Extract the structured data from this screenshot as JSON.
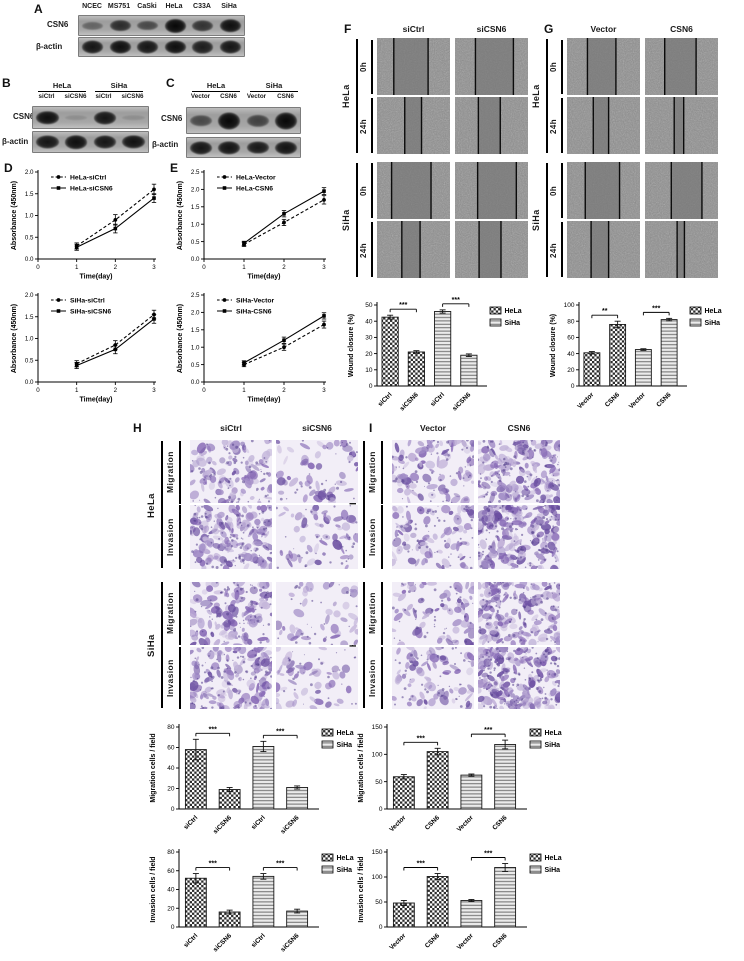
{
  "figure_title": "CSN6 cervical cancer figure",
  "colors": {
    "band": "#141414",
    "blot_bg": "#a3a3a3",
    "wound_bg": "#8d8d8d",
    "wound_gap": "#7c7c7c",
    "wound_line": "#0b0b0b",
    "stain_bg": "#f2eef7",
    "stain_palette": [
      "#6b4fa1",
      "#8668b5",
      "#a18cc6",
      "#c4b6da",
      "#54408c"
    ],
    "axis": "#000000",
    "siha_fill": "#ebebeb"
  },
  "panels": {
    "A": {
      "label": "A",
      "lane_labels": [
        "NCEC",
        "MS751",
        "CaSki",
        "HeLa",
        "C33A",
        "SiHa"
      ],
      "row_labels": [
        "CSN6",
        "β-actin"
      ],
      "bands": {
        "row0": [
          0.35,
          0.75,
          0.55,
          1.0,
          0.7,
          0.95
        ],
        "row1": [
          0.9,
          0.95,
          0.9,
          0.95,
          0.85,
          0.9
        ]
      }
    },
    "B": {
      "label": "B",
      "group_labels": [
        "HeLa",
        "SiHa"
      ],
      "lane_labels": [
        "siCtrl",
        "siCSN6",
        "siCtrl",
        "siCSN6"
      ],
      "row_labels": [
        "CSN6",
        "β-actin"
      ],
      "bands": {
        "row0": [
          0.95,
          0.05,
          0.9,
          0.05
        ],
        "row1": [
          0.9,
          0.95,
          0.9,
          0.93
        ]
      }
    },
    "C": {
      "label": "C",
      "group_labels": [
        "HeLa",
        "SiHa"
      ],
      "lane_labels": [
        "Vector",
        "CSN6",
        "Vector",
        "CSN6"
      ],
      "row_labels": [
        "CSN6",
        "β-actin"
      ],
      "bands": {
        "row0": [
          0.55,
          1.0,
          0.6,
          1.0
        ],
        "row1": [
          0.9,
          0.92,
          0.88,
          0.92
        ]
      }
    },
    "D": {
      "label": "D"
    },
    "E": {
      "label": "E"
    },
    "F": {
      "label": "F",
      "col_labels": [
        "siCtrl",
        "siCSN6"
      ],
      "group_labels": [
        "HeLa",
        "SiHa"
      ],
      "time_labels": [
        "0h",
        "24h"
      ],
      "wound_gaps": [
        [
          [
            0.23,
            0.7
          ],
          [
            0.28,
            0.8
          ]
        ],
        [
          [
            0.38,
            0.61
          ],
          [
            0.32,
            0.62
          ]
        ],
        [
          [
            0.2,
            0.74
          ],
          [
            0.31,
            0.84
          ]
        ],
        [
          [
            0.34,
            0.59
          ],
          [
            0.33,
            0.63
          ]
        ]
      ]
    },
    "G": {
      "label": "G",
      "col_labels": [
        "Vector",
        "CSN6"
      ],
      "group_labels": [
        "HeLa",
        "SiHa"
      ],
      "time_labels": [
        "0h",
        "24h"
      ],
      "wound_gaps": [
        [
          [
            0.28,
            0.67
          ],
          [
            0.27,
            0.7
          ]
        ],
        [
          [
            0.36,
            0.57
          ],
          [
            0.4,
            0.53
          ]
        ],
        [
          [
            0.25,
            0.72
          ],
          [
            0.36,
            0.78
          ]
        ],
        [
          [
            0.33,
            0.57
          ],
          [
            0.44,
            0.54
          ]
        ]
      ]
    },
    "H": {
      "label": "H",
      "col_labels": [
        "siCtrl",
        "siCSN6"
      ],
      "group_labels": [
        "HeLa",
        "SiHa"
      ],
      "assay_labels": [
        "Migration",
        "Invasion"
      ],
      "cell_density": [
        [
          90,
          45
        ],
        [
          130,
          50
        ],
        [
          110,
          40
        ],
        [
          120,
          45
        ]
      ]
    },
    "I": {
      "label": "I",
      "col_labels": [
        "Vector",
        "CSN6"
      ],
      "group_labels": [
        "HeLa",
        "SiHa"
      ],
      "assay_labels": [
        "Migration",
        "Invasion"
      ],
      "cell_density": [
        [
          80,
          140
        ],
        [
          75,
          160
        ],
        [
          60,
          130
        ],
        [
          65,
          170
        ]
      ]
    }
  },
  "chart_data": [
    {
      "id": "D-top",
      "type": "line",
      "ylabel": "Absorbance (450nm)",
      "xlabel": "Time(day)",
      "ylim": [
        0,
        2.0
      ],
      "ytick": 0.5,
      "xlim": [
        0,
        3
      ],
      "xticks": [
        0,
        1,
        2,
        3
      ],
      "series": [
        {
          "name": "HeLa-siCtrl",
          "line": "dashed",
          "marker": "circle",
          "x": [
            1,
            2,
            3
          ],
          "y": [
            0.3,
            0.9,
            1.6
          ],
          "err": [
            0.07,
            0.12,
            0.12
          ]
        },
        {
          "name": "HeLa-siCSN6",
          "line": "solid",
          "marker": "square",
          "x": [
            1,
            2,
            3
          ],
          "y": [
            0.27,
            0.7,
            1.4
          ],
          "err": [
            0.07,
            0.1,
            0.1
          ]
        }
      ]
    },
    {
      "id": "D-bottom",
      "type": "line",
      "ylabel": "Absorbance (450nm)",
      "xlabel": "Time(day)",
      "ylim": [
        0,
        2.0
      ],
      "ytick": 0.5,
      "xlim": [
        0,
        3
      ],
      "xticks": [
        0,
        1,
        2,
        3
      ],
      "series": [
        {
          "name": "SiHa-siCtrl",
          "line": "dashed",
          "marker": "circle",
          "x": [
            1,
            2,
            3
          ],
          "y": [
            0.42,
            0.85,
            1.55
          ],
          "err": [
            0.07,
            0.1,
            0.1
          ]
        },
        {
          "name": "SiHa-siCSN6",
          "line": "solid",
          "marker": "square",
          "x": [
            1,
            2,
            3
          ],
          "y": [
            0.38,
            0.75,
            1.45
          ],
          "err": [
            0.07,
            0.1,
            0.1
          ]
        }
      ]
    },
    {
      "id": "E-top",
      "type": "line",
      "ylabel": "Absorbance (450nm)",
      "xlabel": "Time(day)",
      "ylim": [
        0,
        2.5
      ],
      "ytick": 0.5,
      "xlim": [
        0,
        3
      ],
      "xticks": [
        0,
        1,
        2,
        3
      ],
      "series": [
        {
          "name": "HeLa-Vector",
          "line": "dashed",
          "marker": "circle",
          "x": [
            1,
            2,
            3
          ],
          "y": [
            0.42,
            1.05,
            1.7
          ],
          "err": [
            0.06,
            0.09,
            0.12
          ]
        },
        {
          "name": "HeLa-CSN6",
          "line": "solid",
          "marker": "square",
          "x": [
            1,
            2,
            3
          ],
          "y": [
            0.45,
            1.3,
            1.95
          ],
          "err": [
            0.06,
            0.09,
            0.1
          ]
        }
      ]
    },
    {
      "id": "E-bottom",
      "type": "line",
      "ylabel": "Absorbance (450nm)",
      "xlabel": "Time(day)",
      "ylim": [
        0,
        2.5
      ],
      "ytick": 0.5,
      "xlim": [
        0,
        3
      ],
      "xticks": [
        0,
        1,
        2,
        3
      ],
      "series": [
        {
          "name": "SiHa-Vector",
          "line": "dashed",
          "marker": "circle",
          "x": [
            1,
            2,
            3
          ],
          "y": [
            0.5,
            1.0,
            1.65
          ],
          "err": [
            0.06,
            0.09,
            0.1
          ]
        },
        {
          "name": "SiHa-CSN6",
          "line": "solid",
          "marker": "square",
          "x": [
            1,
            2,
            3
          ],
          "y": [
            0.55,
            1.2,
            1.9
          ],
          "err": [
            0.06,
            0.09,
            0.09
          ]
        }
      ]
    },
    {
      "id": "F-wound-closure",
      "type": "bar",
      "ylabel": "Wound closure (%)",
      "ylim": [
        0,
        50
      ],
      "ytick": 10,
      "categories": [
        "siCtrl",
        "siCSN6",
        "siCtrl",
        "siCSN6"
      ],
      "values": [
        42.5,
        21,
        46,
        19
      ],
      "errors": [
        1.2,
        0.8,
        1.0,
        0.8
      ],
      "bar_groups": [
        "HeLa",
        "HeLa",
        "SiHa",
        "SiHa"
      ],
      "legend": [
        "HeLa",
        "SiHa"
      ],
      "sig": [
        {
          "a": 0,
          "b": 1,
          "label": "***"
        },
        {
          "a": 2,
          "b": 3,
          "label": "***"
        }
      ]
    },
    {
      "id": "G-wound-closure",
      "type": "bar",
      "ylabel": "Wound closure (%)",
      "ylim": [
        0,
        100
      ],
      "ytick": 20,
      "categories": [
        "Vector",
        "CSN6",
        "Vector",
        "CSN6"
      ],
      "values": [
        41,
        76,
        45,
        82
      ],
      "errors": [
        1.5,
        4,
        1,
        1.5
      ],
      "bar_groups": [
        "HeLa",
        "HeLa",
        "SiHa",
        "SiHa"
      ],
      "legend": [
        "HeLa",
        "SiHa"
      ],
      "sig": [
        {
          "a": 0,
          "b": 1,
          "label": "**"
        },
        {
          "a": 2,
          "b": 3,
          "label": "***"
        }
      ]
    },
    {
      "id": "H-migration",
      "type": "bar",
      "ylabel": "Migration cells / field",
      "ylim": [
        0,
        80
      ],
      "ytick": 20,
      "categories": [
        "siCtrl",
        "siCSN6",
        "siCtrl",
        "siCSN6"
      ],
      "values": [
        58,
        19,
        61,
        21
      ],
      "errors": [
        10,
        2,
        5,
        1.5
      ],
      "bar_groups": [
        "HeLa",
        "HeLa",
        "SiHa",
        "SiHa"
      ],
      "legend": [
        "HeLa",
        "SiHa"
      ],
      "sig": [
        {
          "a": 0,
          "b": 1,
          "label": "***"
        },
        {
          "a": 2,
          "b": 3,
          "label": "***"
        }
      ]
    },
    {
      "id": "H-invasion",
      "type": "bar",
      "ylabel": "Invasion cells / field",
      "ylim": [
        0,
        80
      ],
      "ytick": 20,
      "categories": [
        "siCtrl",
        "siCSN6",
        "siCtrl",
        "siCSN6"
      ],
      "values": [
        52,
        16,
        54,
        17
      ],
      "errors": [
        5,
        2,
        3,
        2
      ],
      "bar_groups": [
        "HeLa",
        "HeLa",
        "SiHa",
        "SiHa"
      ],
      "legend": [
        "HeLa",
        "SiHa"
      ],
      "sig": [
        {
          "a": 0,
          "b": 1,
          "label": "***"
        },
        {
          "a": 2,
          "b": 3,
          "label": "***"
        }
      ]
    },
    {
      "id": "I-migration",
      "type": "bar",
      "ylabel": "Migration cells / field",
      "ylim": [
        0,
        150
      ],
      "ytick": 50,
      "categories": [
        "Vector",
        "CSN6",
        "Vector",
        "CSN6"
      ],
      "values": [
        59,
        105,
        62,
        118
      ],
      "errors": [
        4,
        6,
        2,
        8
      ],
      "bar_groups": [
        "HeLa",
        "HeLa",
        "SiHa",
        "SiHa"
      ],
      "legend": [
        "HeLa",
        "SiHa"
      ],
      "sig": [
        {
          "a": 0,
          "b": 1,
          "label": "***"
        },
        {
          "a": 2,
          "b": 3,
          "label": "***"
        }
      ]
    },
    {
      "id": "I-invasion",
      "type": "bar",
      "ylabel": "Invasion cells / field",
      "ylim": [
        0,
        150
      ],
      "ytick": 50,
      "categories": [
        "Vector",
        "CSN6",
        "Vector",
        "CSN6"
      ],
      "values": [
        48,
        101,
        53,
        119
      ],
      "errors": [
        5,
        6,
        2,
        8
      ],
      "bar_groups": [
        "HeLa",
        "HeLa",
        "SiHa",
        "SiHa"
      ],
      "legend": [
        "HeLa",
        "SiHa"
      ],
      "sig": [
        {
          "a": 0,
          "b": 1,
          "label": "***"
        },
        {
          "a": 2,
          "b": 3,
          "label": "***"
        }
      ]
    }
  ]
}
